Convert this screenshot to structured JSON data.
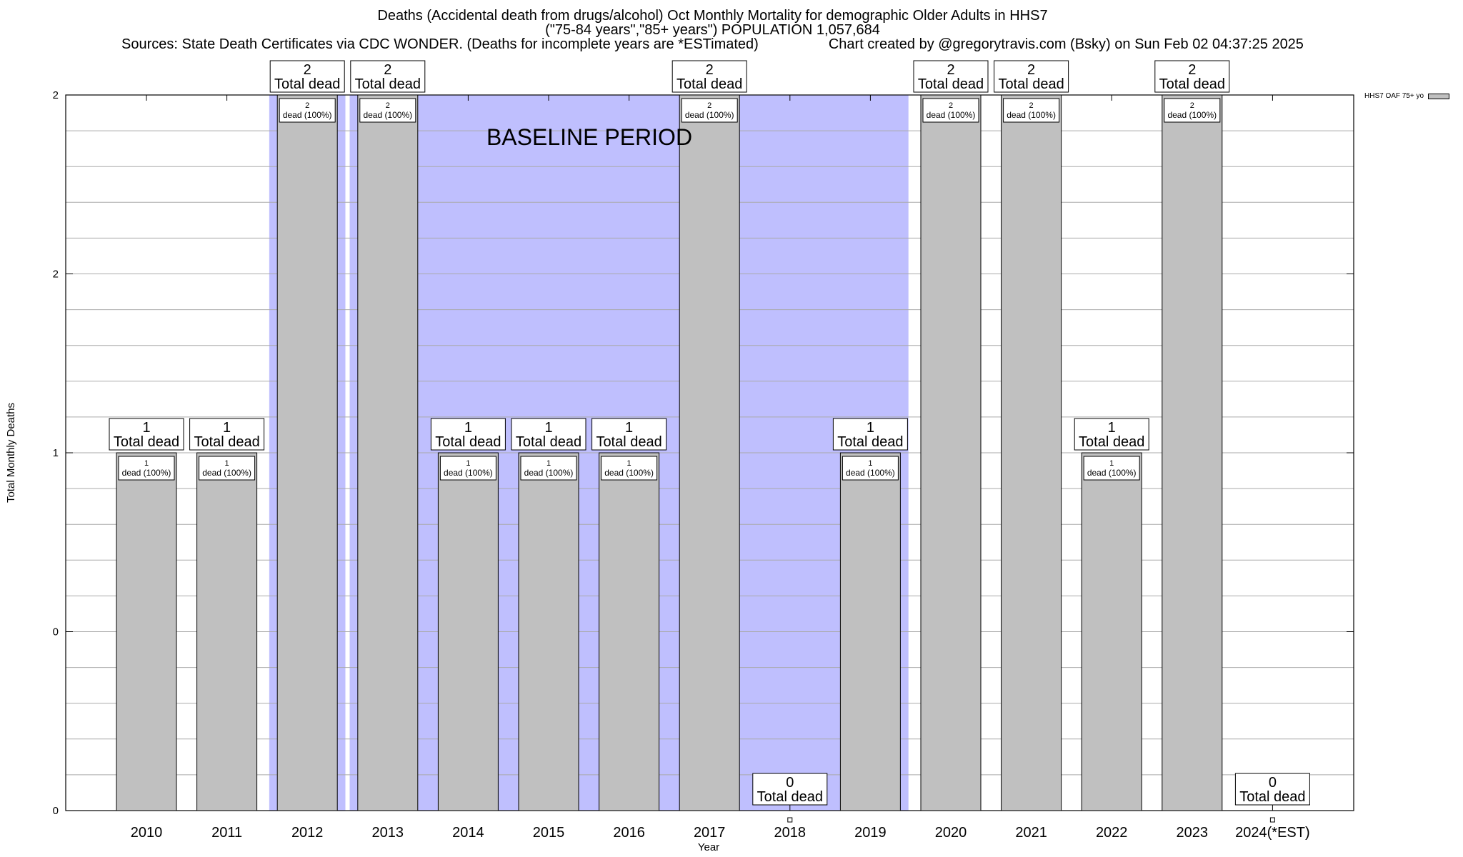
{
  "title": {
    "line1": "Deaths (Accidental death from drugs/alcohol) Oct Monthly Mortality for demographic Older Adults in HHS7",
    "line2": "(\"75-84 years\",\"85+ years\") POPULATION 1,057,684",
    "line3_left": "Sources: State Death Certificates via CDC WONDER. (Deaths for incomplete years are *ESTimated)",
    "line3_right": "Chart created by @gregorytravis.com (Bsky) on Sun Feb 02 04:37:25 2025"
  },
  "chart_data": {
    "type": "bar",
    "xlabel": "Year",
    "ylabel": "Total Monthly Deaths",
    "categories": [
      "2010",
      "2011",
      "2012",
      "2013",
      "2014",
      "2015",
      "2016",
      "2017",
      "2018",
      "2019",
      "2020",
      "2021",
      "2022",
      "2023",
      "2024(*EST)"
    ],
    "series": [
      {
        "name": "HHS7 OAF 75+ yo",
        "values": [
          1,
          1,
          2,
          2,
          1,
          1,
          1,
          2,
          0,
          1,
          2,
          2,
          1,
          2,
          0
        ]
      }
    ],
    "ylim": [
      0,
      2
    ],
    "ytick_labels": [
      "0",
      "0",
      "1",
      "2",
      "2"
    ],
    "grid": true,
    "legend_position": "top-right",
    "total_label_suffix": "Total dead",
    "inner_label_suffix": "dead (100%)",
    "baseline": {
      "label": "BASELINE PERIOD",
      "segments": [
        [
          "2012",
          "2012"
        ],
        [
          "2013",
          "2019"
        ]
      ]
    },
    "colors": {
      "bar": "#c0c0c0",
      "baseline": "#bfbffe",
      "grid": "#aaaaaa"
    }
  }
}
